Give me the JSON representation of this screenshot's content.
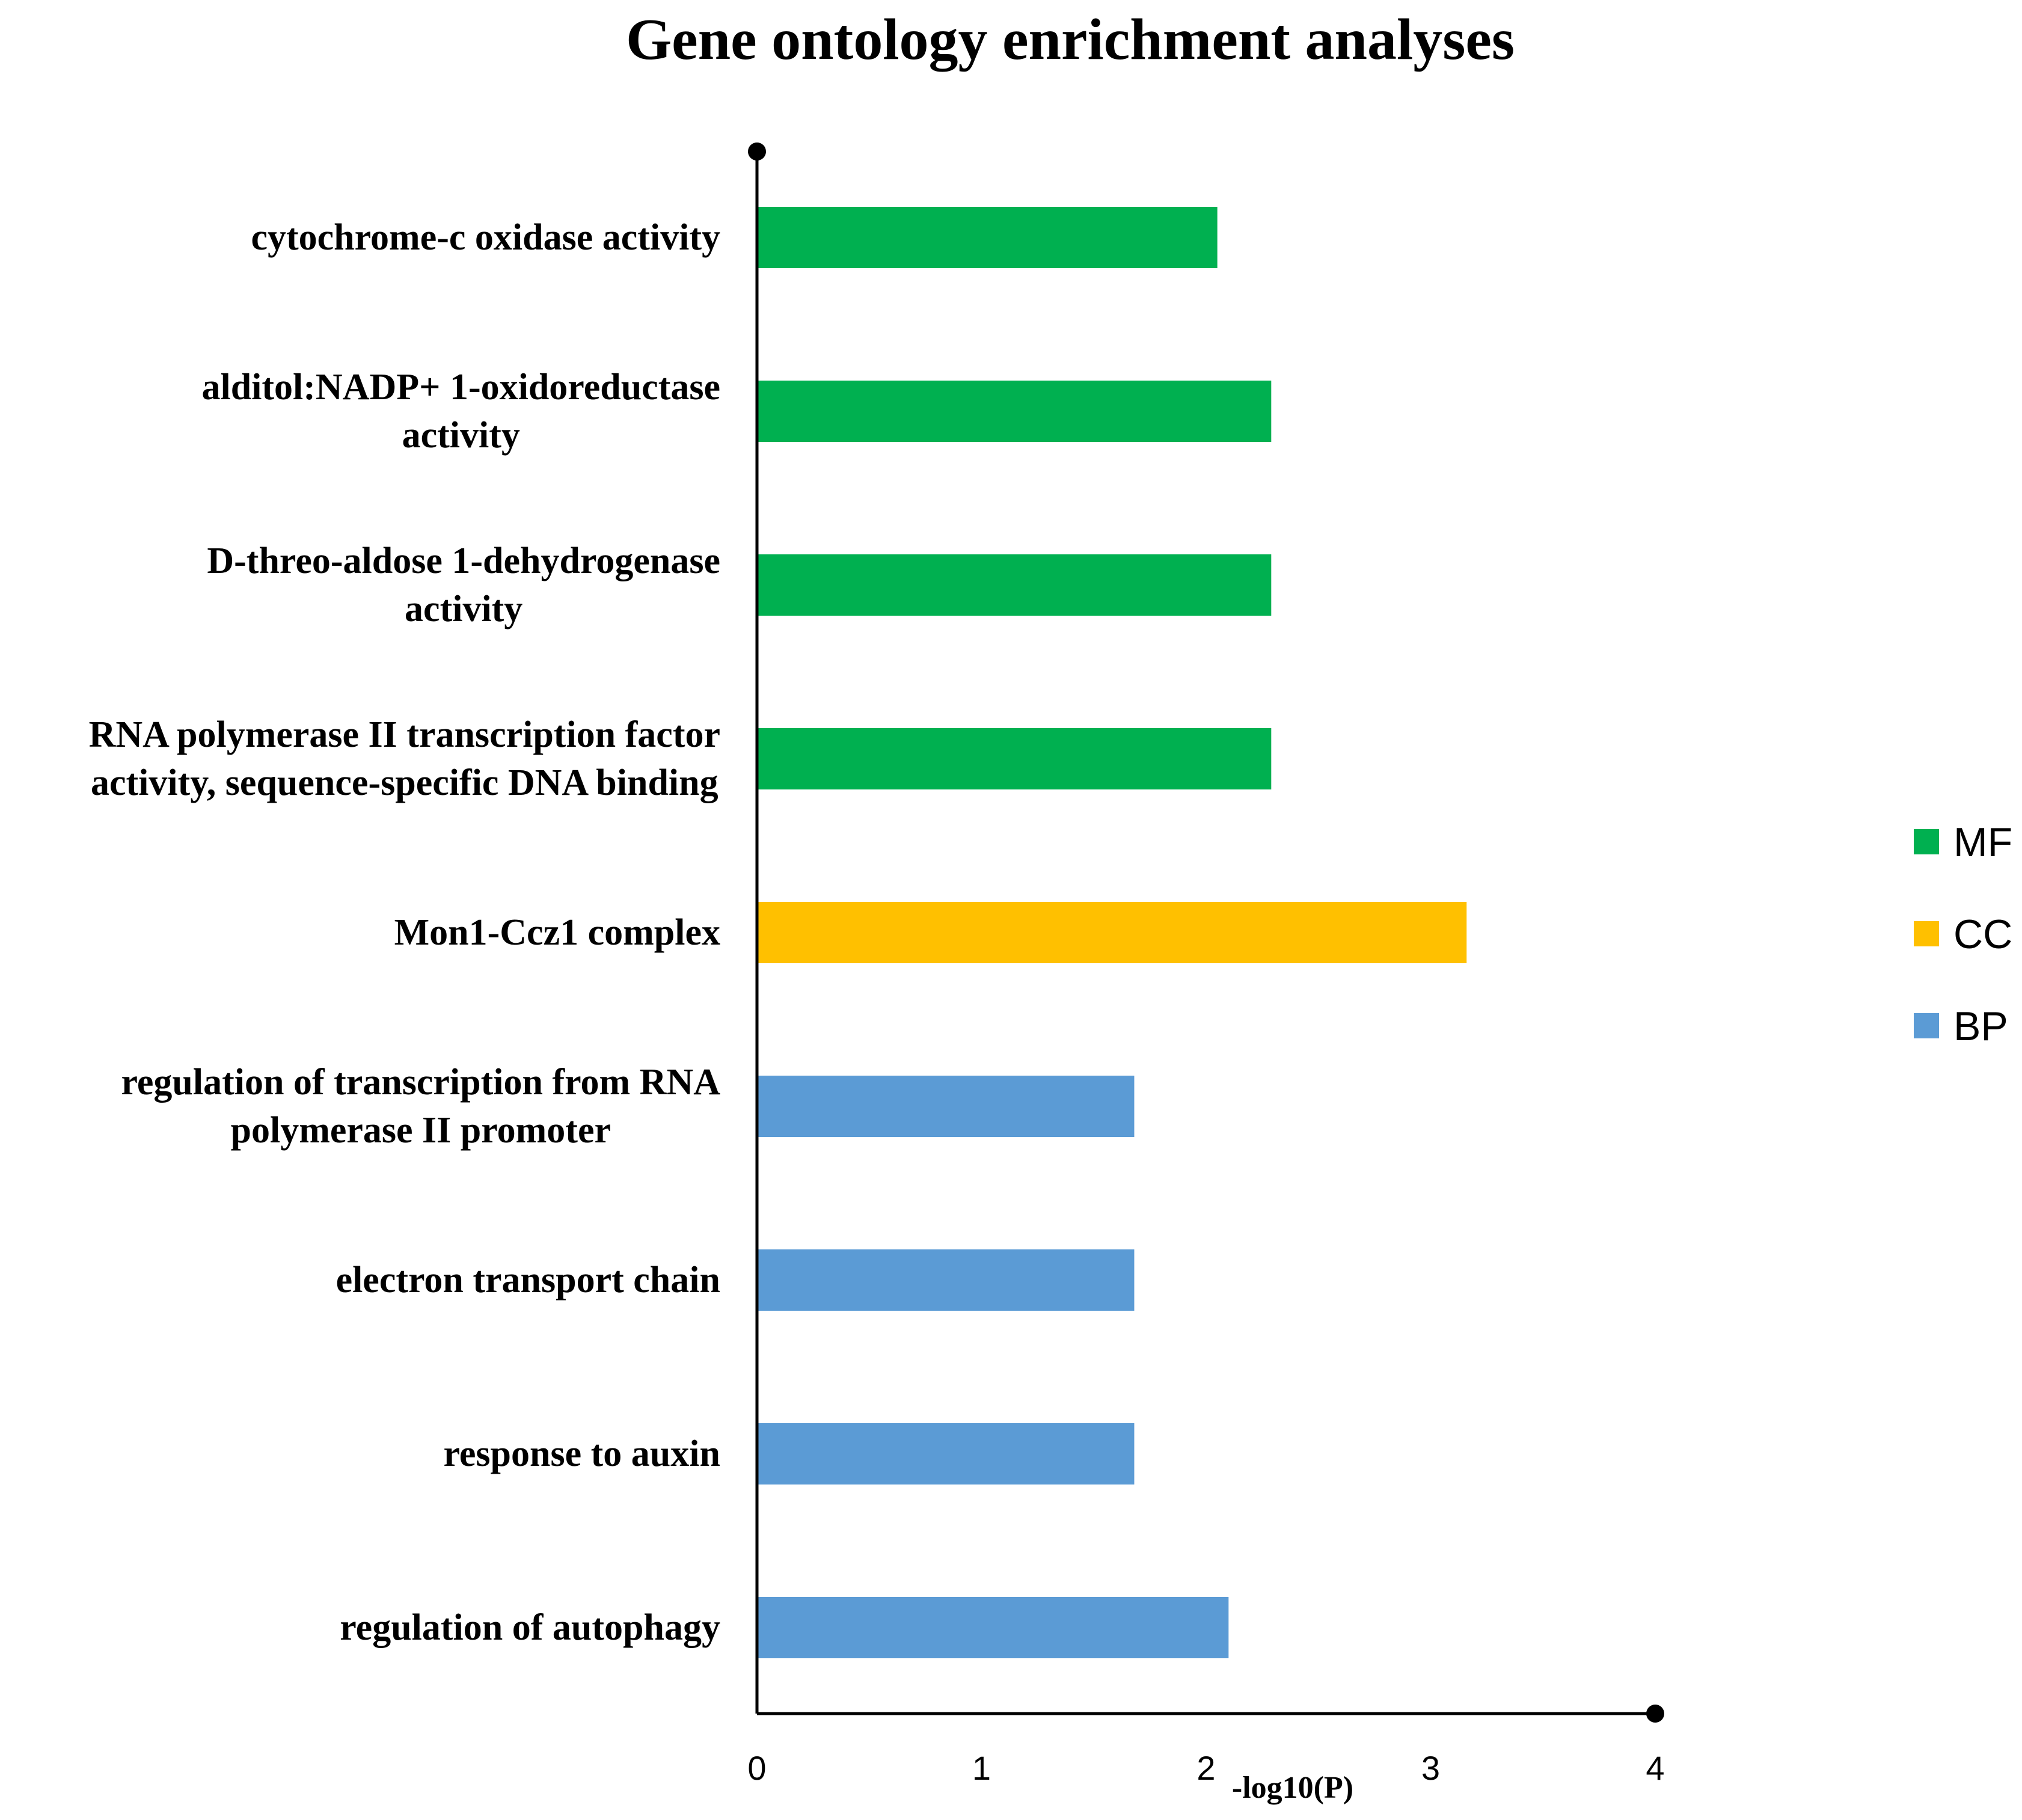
{
  "chart_data": {
    "type": "bar",
    "orientation": "horizontal",
    "title": "Gene ontology enrichment analyses",
    "xlabel": "-log10(P)",
    "ylabel": "",
    "xlim": [
      0,
      4
    ],
    "xticks": [
      "0",
      "1",
      "2",
      "3",
      "4"
    ],
    "grid": false,
    "legend_position": "right",
    "legend": [
      {
        "name": "MF",
        "color": "#00b050"
      },
      {
        "name": "CC",
        "color": "#ffc000"
      },
      {
        "name": "BP",
        "color": "#5b9bd5"
      }
    ],
    "categories": [
      {
        "lines": [
          "cytochrome-c oxidase activity"
        ],
        "value": 2.05,
        "group": "MF"
      },
      {
        "lines": [
          "alditol:NADP+ 1-oxidoreductase",
          "activity"
        ],
        "value": 2.29,
        "group": "MF"
      },
      {
        "lines": [
          "D-threo-aldose 1-dehydrogenase",
          "activity"
        ],
        "value": 2.29,
        "group": "MF"
      },
      {
        "lines": [
          "RNA polymerase II transcription factor",
          "activity, sequence-specific DNA binding"
        ],
        "value": 2.29,
        "group": "MF"
      },
      {
        "lines": [
          "Mon1-Ccz1 complex"
        ],
        "value": 3.16,
        "group": "CC"
      },
      {
        "lines": [
          "regulation of transcription from RNA",
          "polymerase II promoter"
        ],
        "value": 1.68,
        "group": "BP"
      },
      {
        "lines": [
          "electron transport chain"
        ],
        "value": 1.68,
        "group": "BP"
      },
      {
        "lines": [
          "response to auxin"
        ],
        "value": 1.68,
        "group": "BP"
      },
      {
        "lines": [
          "regulation of autophagy"
        ],
        "value": 2.1,
        "group": "BP"
      }
    ]
  }
}
